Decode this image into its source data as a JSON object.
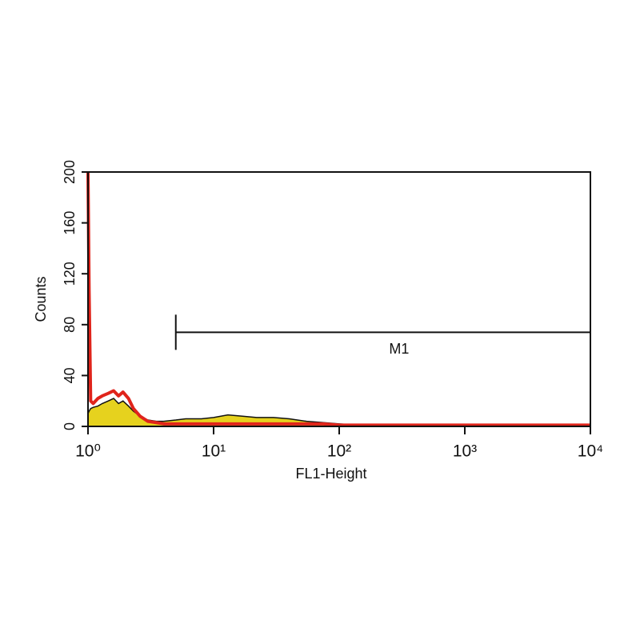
{
  "chart_data": {
    "type": "histogram",
    "xlabel": "FL1-Height",
    "ylabel": "Counts",
    "xscale": "log",
    "xlim": [
      1,
      10000
    ],
    "xticks": [
      {
        "value": 1,
        "label": "10⁰"
      },
      {
        "value": 10,
        "label": "10¹"
      },
      {
        "value": 100,
        "label": "10²"
      },
      {
        "value": 1000,
        "label": "10³"
      },
      {
        "value": 10000,
        "label": "10⁴"
      }
    ],
    "ylim": [
      0,
      200
    ],
    "yticks": [
      0,
      40,
      80,
      120,
      160,
      200
    ],
    "x": [
      1,
      1.02,
      1.05,
      1.1,
      1.2,
      1.3,
      1.45,
      1.6,
      1.75,
      1.9,
      2.1,
      2.3,
      2.6,
      3,
      3.5,
      4,
      5,
      6,
      8,
      10,
      13,
      17,
      22,
      30,
      40,
      55,
      75,
      100,
      140,
      200,
      500,
      1000,
      10000
    ],
    "series": [
      {
        "color": "#e6d21e",
        "outline": "#111111",
        "fill": true,
        "values": [
          10,
          12,
          14,
          15,
          16,
          18,
          20,
          22,
          18,
          20,
          16,
          12,
          8,
          5,
          4,
          4,
          5,
          6,
          6,
          7,
          9,
          8,
          7,
          7,
          6,
          4,
          3,
          2,
          1,
          0,
          0,
          0,
          0
        ]
      },
      {
        "color": "#e0241b",
        "fill": false,
        "values": [
          200,
          107,
          20,
          18,
          22,
          24,
          26,
          28,
          24,
          27,
          22,
          14,
          8,
          4,
          3,
          2,
          2,
          2,
          2,
          2,
          2,
          2,
          2,
          2,
          2,
          2,
          2,
          1,
          1,
          1,
          1,
          1,
          1
        ]
      }
    ],
    "markers": [
      {
        "label": "M1",
        "range": [
          5,
          10000
        ],
        "y": 74
      }
    ]
  }
}
